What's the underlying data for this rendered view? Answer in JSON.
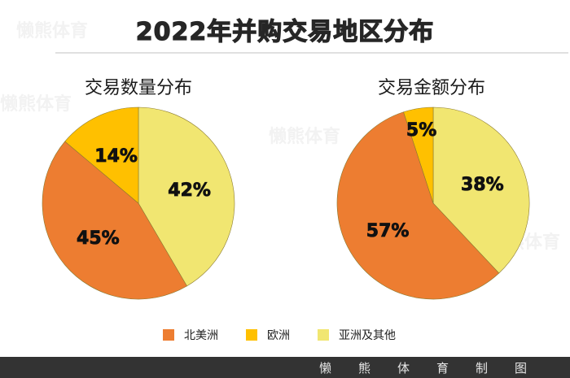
{
  "title": "2022年并购交易地区分布",
  "footer": "懒熊体育制图",
  "watermark": "懒熊体育",
  "colors": {
    "north_america": "#ED7D31",
    "europe": "#FFC000",
    "asia_other": "#F1E671",
    "title": "#262626",
    "footer_bg": "#333333"
  },
  "legend": [
    {
      "label": "北美洲",
      "color": "#ED7D31"
    },
    {
      "label": "欧洲",
      "color": "#FFC000"
    },
    {
      "label": "亚洲及其他",
      "color": "#F1E671"
    }
  ],
  "chart_data": [
    {
      "type": "pie",
      "title": "交易数量分布",
      "categories": [
        "亚洲及其他",
        "北美洲",
        "欧洲"
      ],
      "values": [
        42,
        45,
        14
      ],
      "labels": [
        "42%",
        "45%",
        "14%"
      ],
      "colors": [
        "#F1E671",
        "#ED7D31",
        "#FFC000"
      ],
      "start_angle": "12 o'clock, clockwise",
      "legend_position": "bottom"
    },
    {
      "type": "pie",
      "title": "交易金额分布",
      "categories": [
        "亚洲及其他",
        "北美洲",
        "欧洲"
      ],
      "values": [
        38,
        57,
        5
      ],
      "labels": [
        "38%",
        "57%",
        "5%"
      ],
      "colors": [
        "#F1E671",
        "#ED7D31",
        "#FFC000"
      ],
      "start_angle": "12 o'clock, clockwise",
      "legend_position": "bottom"
    }
  ]
}
